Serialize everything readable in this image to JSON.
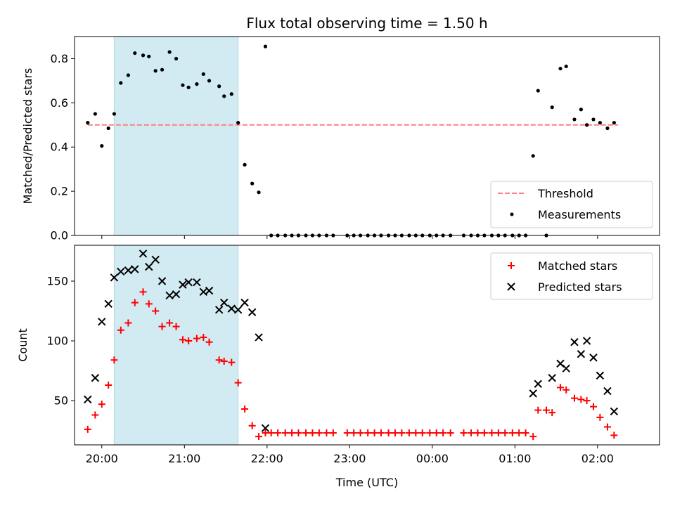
{
  "chart_data": [
    {
      "type": "scatter",
      "title": "Flux total observing time = 1.50 h",
      "ylabel": "Matched/Predicted stars",
      "xlabel": "",
      "xlim": [
        -0.33,
        6.75
      ],
      "ylim": [
        0.0,
        0.9
      ],
      "yticks": [
        0.0,
        0.2,
        0.4,
        0.6,
        0.8
      ],
      "ytick_labels": [
        "0.0",
        "0.2",
        "0.4",
        "0.6",
        "0.8"
      ],
      "xticks": [
        0,
        1,
        2,
        3,
        4,
        5,
        6
      ],
      "show_xtick_labels": false,
      "highlight_span": [
        0.15,
        1.65
      ],
      "highlight_color": "#add8e6",
      "threshold": {
        "name": "Threshold",
        "value": 0.5,
        "x_range": [
          -0.17,
          6.25
        ],
        "color": "#ff7f7f",
        "style": "dashed"
      },
      "legend": {
        "placement": "lower-right",
        "entries": [
          "Threshold",
          "Measurements"
        ]
      },
      "series": [
        {
          "name": "Measurements",
          "marker": "dot",
          "color": "#000000",
          "points": [
            [
              -0.17,
              0.51
            ],
            [
              -0.08,
              0.55
            ],
            [
              0.0,
              0.405
            ],
            [
              0.08,
              0.485
            ],
            [
              0.15,
              0.55
            ],
            [
              0.23,
              0.69
            ],
            [
              0.32,
              0.725
            ],
            [
              0.4,
              0.825
            ],
            [
              0.5,
              0.815
            ],
            [
              0.57,
              0.81
            ],
            [
              0.65,
              0.745
            ],
            [
              0.73,
              0.75
            ],
            [
              0.82,
              0.83
            ],
            [
              0.9,
              0.8
            ],
            [
              0.98,
              0.68
            ],
            [
              1.05,
              0.67
            ],
            [
              1.15,
              0.685
            ],
            [
              1.23,
              0.73
            ],
            [
              1.3,
              0.7
            ],
            [
              1.42,
              0.675
            ],
            [
              1.48,
              0.63
            ],
            [
              1.57,
              0.64
            ],
            [
              1.65,
              0.51
            ],
            [
              1.73,
              0.32
            ],
            [
              1.82,
              0.235
            ],
            [
              1.9,
              0.195
            ],
            [
              1.98,
              0.855
            ],
            [
              2.05,
              0.0
            ],
            [
              2.13,
              0.0
            ],
            [
              2.22,
              0.0
            ],
            [
              2.3,
              0.0
            ],
            [
              2.38,
              0.0
            ],
            [
              2.47,
              0.0
            ],
            [
              2.55,
              0.0
            ],
            [
              2.63,
              0.0
            ],
            [
              2.72,
              0.0
            ],
            [
              2.8,
              0.0
            ],
            [
              2.97,
              0.0
            ],
            [
              3.05,
              0.0
            ],
            [
              3.13,
              0.0
            ],
            [
              3.22,
              0.0
            ],
            [
              3.3,
              0.0
            ],
            [
              3.38,
              0.0
            ],
            [
              3.47,
              0.0
            ],
            [
              3.55,
              0.0
            ],
            [
              3.63,
              0.0
            ],
            [
              3.72,
              0.0
            ],
            [
              3.8,
              0.0
            ],
            [
              3.88,
              0.0
            ],
            [
              3.97,
              0.0
            ],
            [
              4.05,
              0.0
            ],
            [
              4.13,
              0.0
            ],
            [
              4.22,
              0.0
            ],
            [
              4.38,
              0.0
            ],
            [
              4.47,
              0.0
            ],
            [
              4.55,
              0.0
            ],
            [
              4.63,
              0.0
            ],
            [
              4.72,
              0.0
            ],
            [
              4.8,
              0.0
            ],
            [
              4.88,
              0.0
            ],
            [
              4.97,
              0.0
            ],
            [
              5.05,
              0.0
            ],
            [
              5.13,
              0.0
            ],
            [
              5.22,
              0.36
            ],
            [
              5.28,
              0.655
            ],
            [
              5.38,
              0.0
            ],
            [
              5.45,
              0.58
            ],
            [
              5.55,
              0.755
            ],
            [
              5.62,
              0.765
            ],
            [
              5.72,
              0.525
            ],
            [
              5.8,
              0.57
            ],
            [
              5.87,
              0.5
            ],
            [
              5.95,
              0.525
            ],
            [
              6.03,
              0.51
            ],
            [
              6.12,
              0.485
            ],
            [
              6.2,
              0.51
            ]
          ]
        }
      ]
    },
    {
      "type": "scatter",
      "title": "",
      "xlabel": "Time (UTC)",
      "ylabel": "Count",
      "xlim": [
        -0.33,
        6.75
      ],
      "ylim": [
        13,
        180
      ],
      "yticks": [
        50,
        100,
        150
      ],
      "ytick_labels": [
        "50",
        "100",
        "150"
      ],
      "xticks": [
        0,
        1,
        2,
        3,
        4,
        5,
        6
      ],
      "xtick_labels": [
        "20:00",
        "21:00",
        "22:00",
        "23:00",
        "00:00",
        "01:00",
        "02:00"
      ],
      "highlight_span": [
        0.15,
        1.65
      ],
      "highlight_color": "#add8e6",
      "legend": {
        "placement": "upper-right",
        "entries": [
          "Matched stars",
          "Predicted stars"
        ]
      },
      "series": [
        {
          "name": "Matched stars",
          "marker": "plus",
          "color": "#ff0000",
          "points": [
            [
              -0.17,
              26
            ],
            [
              -0.08,
              38
            ],
            [
              0.0,
              47
            ],
            [
              0.08,
              63
            ],
            [
              0.15,
              84
            ],
            [
              0.23,
              109
            ],
            [
              0.32,
              115
            ],
            [
              0.4,
              132
            ],
            [
              0.5,
              141
            ],
            [
              0.57,
              131
            ],
            [
              0.65,
              125
            ],
            [
              0.73,
              112
            ],
            [
              0.82,
              115
            ],
            [
              0.9,
              112
            ],
            [
              0.98,
              101
            ],
            [
              1.05,
              100
            ],
            [
              1.15,
              102
            ],
            [
              1.23,
              103
            ],
            [
              1.3,
              99
            ],
            [
              1.42,
              84
            ],
            [
              1.48,
              83
            ],
            [
              1.57,
              82
            ],
            [
              1.65,
              65
            ],
            [
              1.73,
              43
            ],
            [
              1.82,
              29
            ],
            [
              1.9,
              20
            ],
            [
              1.98,
              23
            ],
            [
              2.05,
              23
            ],
            [
              2.13,
              23
            ],
            [
              2.22,
              23
            ],
            [
              2.3,
              23
            ],
            [
              2.38,
              23
            ],
            [
              2.47,
              23
            ],
            [
              2.55,
              23
            ],
            [
              2.63,
              23
            ],
            [
              2.72,
              23
            ],
            [
              2.8,
              23
            ],
            [
              2.97,
              23
            ],
            [
              3.05,
              23
            ],
            [
              3.13,
              23
            ],
            [
              3.22,
              23
            ],
            [
              3.3,
              23
            ],
            [
              3.38,
              23
            ],
            [
              3.47,
              23
            ],
            [
              3.55,
              23
            ],
            [
              3.63,
              23
            ],
            [
              3.72,
              23
            ],
            [
              3.8,
              23
            ],
            [
              3.88,
              23
            ],
            [
              3.97,
              23
            ],
            [
              4.05,
              23
            ],
            [
              4.13,
              23
            ],
            [
              4.22,
              23
            ],
            [
              4.38,
              23
            ],
            [
              4.47,
              23
            ],
            [
              4.55,
              23
            ],
            [
              4.63,
              23
            ],
            [
              4.72,
              23
            ],
            [
              4.8,
              23
            ],
            [
              4.88,
              23
            ],
            [
              4.97,
              23
            ],
            [
              5.05,
              23
            ],
            [
              5.13,
              23
            ],
            [
              5.22,
              20
            ],
            [
              5.28,
              42
            ],
            [
              5.38,
              42
            ],
            [
              5.45,
              40
            ],
            [
              5.55,
              61
            ],
            [
              5.62,
              59
            ],
            [
              5.72,
              52
            ],
            [
              5.8,
              51
            ],
            [
              5.87,
              50
            ],
            [
              5.95,
              45
            ],
            [
              6.03,
              36
            ],
            [
              6.12,
              28
            ],
            [
              6.2,
              21
            ]
          ]
        },
        {
          "name": "Predicted stars",
          "marker": "x",
          "color": "#000000",
          "points": [
            [
              -0.17,
              51
            ],
            [
              -0.08,
              69
            ],
            [
              0.0,
              116
            ],
            [
              0.08,
              131
            ],
            [
              0.15,
              153
            ],
            [
              0.23,
              158
            ],
            [
              0.32,
              159
            ],
            [
              0.4,
              160
            ],
            [
              0.5,
              173
            ],
            [
              0.57,
              162
            ],
            [
              0.65,
              168
            ],
            [
              0.73,
              150
            ],
            [
              0.82,
              138
            ],
            [
              0.9,
              139
            ],
            [
              0.98,
              147
            ],
            [
              1.05,
              149
            ],
            [
              1.15,
              149
            ],
            [
              1.23,
              141
            ],
            [
              1.3,
              142
            ],
            [
              1.42,
              126
            ],
            [
              1.48,
              132
            ],
            [
              1.57,
              127
            ],
            [
              1.65,
              126
            ],
            [
              1.73,
              132
            ],
            [
              1.82,
              124
            ],
            [
              1.9,
              103
            ],
            [
              1.98,
              27
            ],
            [
              5.22,
              56
            ],
            [
              5.28,
              64
            ],
            [
              5.45,
              69
            ],
            [
              5.55,
              81
            ],
            [
              5.62,
              77
            ],
            [
              5.72,
              99
            ],
            [
              5.8,
              89
            ],
            [
              5.87,
              100
            ],
            [
              5.95,
              86
            ],
            [
              6.03,
              71
            ],
            [
              6.12,
              58
            ],
            [
              6.2,
              41
            ]
          ]
        }
      ]
    }
  ]
}
